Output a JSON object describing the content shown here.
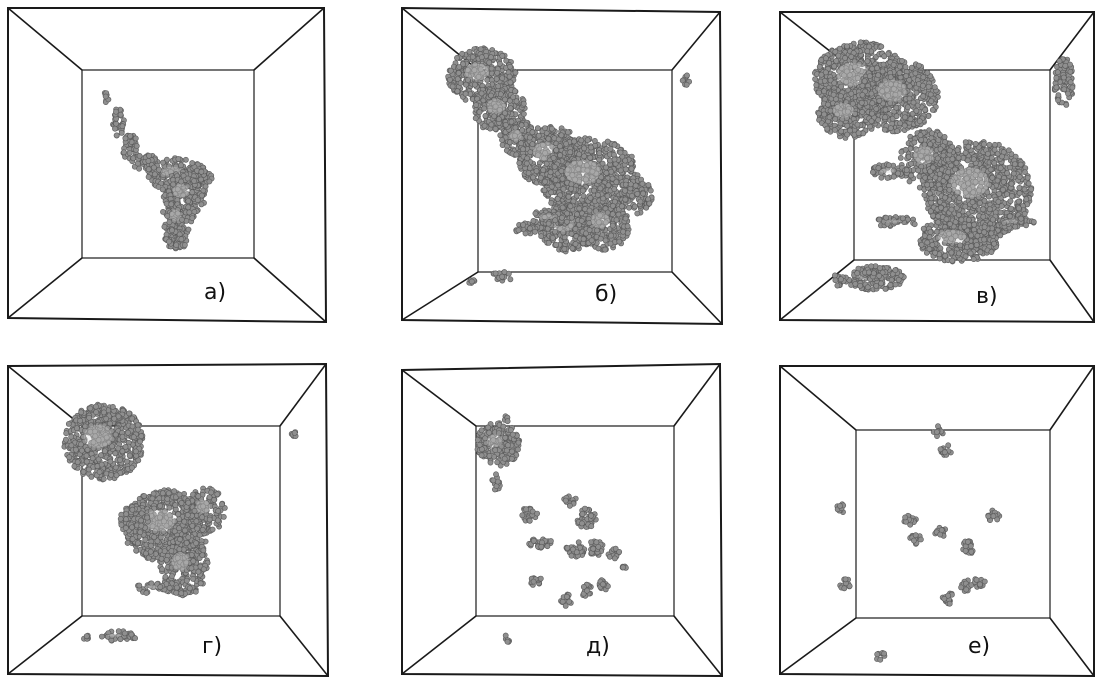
{
  "figure": {
    "panels": [
      {
        "label": "а)"
      },
      {
        "label": "б)"
      },
      {
        "label": "в)"
      },
      {
        "label": "г)"
      },
      {
        "label": "д)"
      },
      {
        "label": "е)"
      }
    ]
  },
  "colors": {
    "frame": "#1a1a1a",
    "particle_fill": "#8f8f8f",
    "particle_edge": "#5a5a5a",
    "particle_highlight": "#d8d8d8",
    "background": "#ffffff"
  }
}
